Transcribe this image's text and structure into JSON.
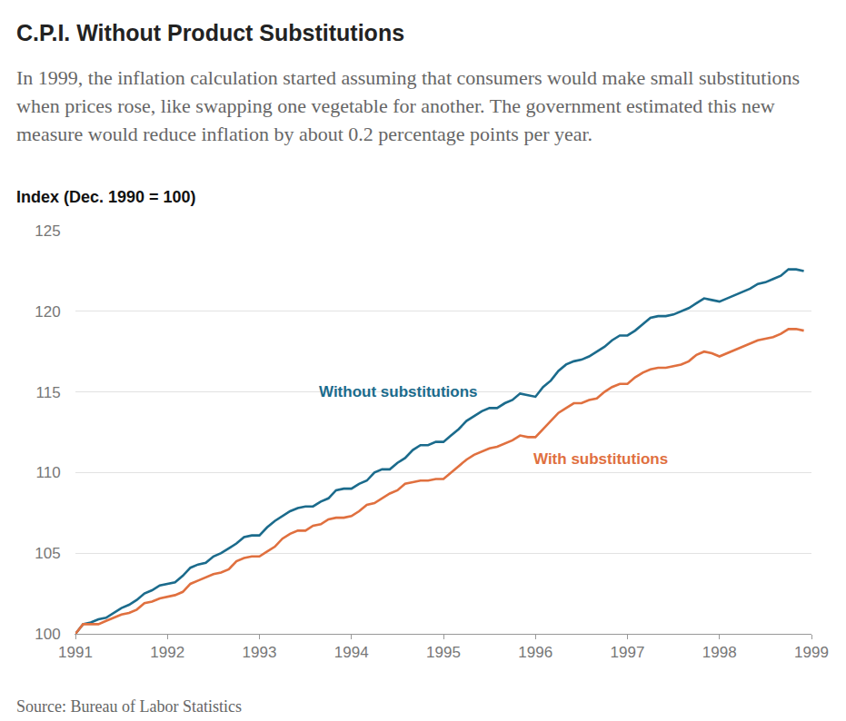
{
  "chart_data": {
    "type": "line",
    "title": "C.P.I. Without Product Substitutions",
    "subtitle": "In 1999, the inflation calculation started assuming that consumers would make small substitutions when prices rose, like swapping one vegetable for another. The government estimated this new measure would reduce inflation by about 0.2 percentage points per year.",
    "y_label": "Index (Dec. 1990 = 100)",
    "source": "Source: Bureau of Labor Statistics",
    "x": [
      1991,
      1991.083,
      1991.167,
      1991.25,
      1991.333,
      1991.417,
      1991.5,
      1991.583,
      1991.667,
      1991.75,
      1991.833,
      1991.917,
      1992,
      1992.083,
      1992.167,
      1992.25,
      1992.333,
      1992.417,
      1992.5,
      1992.583,
      1992.667,
      1992.75,
      1992.833,
      1992.917,
      1993,
      1993.083,
      1993.167,
      1993.25,
      1993.333,
      1993.417,
      1993.5,
      1993.583,
      1993.667,
      1993.75,
      1993.833,
      1993.917,
      1994,
      1994.083,
      1994.167,
      1994.25,
      1994.333,
      1994.417,
      1994.5,
      1994.583,
      1994.667,
      1994.75,
      1994.833,
      1994.917,
      1995,
      1995.083,
      1995.167,
      1995.25,
      1995.333,
      1995.417,
      1995.5,
      1995.583,
      1995.667,
      1995.75,
      1995.833,
      1995.917,
      1996,
      1996.083,
      1996.167,
      1996.25,
      1996.333,
      1996.417,
      1996.5,
      1996.583,
      1996.667,
      1996.75,
      1996.833,
      1996.917,
      1997,
      1997.083,
      1997.167,
      1997.25,
      1997.333,
      1997.417,
      1997.5,
      1997.583,
      1997.667,
      1997.75,
      1997.833,
      1997.917,
      1998,
      1998.083,
      1998.167,
      1998.25,
      1998.333,
      1998.417,
      1998.5,
      1998.583,
      1998.667,
      1998.75,
      1998.833,
      1998.917
    ],
    "xlim": [
      1991,
      1999
    ],
    "xticks": [
      1991,
      1992,
      1993,
      1994,
      1995,
      1996,
      1997,
      1998,
      1999
    ],
    "ylim": [
      100,
      125
    ],
    "yticks": [
      100,
      105,
      110,
      115,
      120,
      125
    ],
    "grid": true,
    "series": [
      {
        "name": "Without substitutions",
        "color": "#1b6b8c",
        "values": [
          100,
          100.6,
          100.7,
          100.9,
          101.0,
          101.3,
          101.6,
          101.8,
          102.1,
          102.5,
          102.7,
          103.0,
          103.1,
          103.2,
          103.6,
          104.1,
          104.3,
          104.4,
          104.8,
          105.0,
          105.3,
          105.6,
          106.0,
          106.1,
          106.1,
          106.6,
          107.0,
          107.3,
          107.6,
          107.8,
          107.9,
          107.9,
          108.2,
          108.4,
          108.9,
          109.0,
          109.0,
          109.3,
          109.5,
          110.0,
          110.2,
          110.2,
          110.6,
          110.9,
          111.4,
          111.7,
          111.7,
          111.9,
          111.9,
          112.3,
          112.7,
          113.2,
          113.5,
          113.8,
          114.0,
          114.0,
          114.3,
          114.5,
          114.9,
          114.8,
          114.7,
          115.3,
          115.7,
          116.3,
          116.7,
          116.9,
          117.0,
          117.2,
          117.5,
          117.8,
          118.2,
          118.5,
          118.5,
          118.8,
          119.2,
          119.6,
          119.7,
          119.7,
          119.8,
          120.0,
          120.2,
          120.5,
          120.8,
          120.7,
          120.6,
          120.8,
          121.0,
          121.2,
          121.4,
          121.7,
          121.8,
          122.0,
          122.2,
          122.6,
          122.6,
          122.5
        ]
      },
      {
        "name": "With substitutions",
        "color": "#e0703f",
        "values": [
          100,
          100.6,
          100.6,
          100.6,
          100.8,
          101.0,
          101.2,
          101.3,
          101.5,
          101.9,
          102.0,
          102.2,
          102.3,
          102.4,
          102.6,
          103.1,
          103.3,
          103.5,
          103.7,
          103.8,
          104.0,
          104.5,
          104.7,
          104.8,
          104.8,
          105.1,
          105.4,
          105.9,
          106.2,
          106.4,
          106.4,
          106.7,
          106.8,
          107.1,
          107.2,
          107.2,
          107.3,
          107.6,
          108.0,
          108.1,
          108.4,
          108.7,
          108.9,
          109.3,
          109.4,
          109.5,
          109.5,
          109.6,
          109.6,
          110.0,
          110.4,
          110.8,
          111.1,
          111.3,
          111.5,
          111.6,
          111.8,
          112.0,
          112.3,
          112.2,
          112.2,
          112.7,
          113.2,
          113.7,
          114.0,
          114.3,
          114.3,
          114.5,
          114.6,
          115.0,
          115.3,
          115.5,
          115.5,
          115.9,
          116.2,
          116.4,
          116.5,
          116.5,
          116.6,
          116.7,
          116.9,
          117.3,
          117.5,
          117.4,
          117.2,
          117.4,
          117.6,
          117.8,
          118.0,
          118.2,
          118.3,
          118.4,
          118.6,
          118.9,
          118.9,
          118.8
        ]
      }
    ]
  }
}
